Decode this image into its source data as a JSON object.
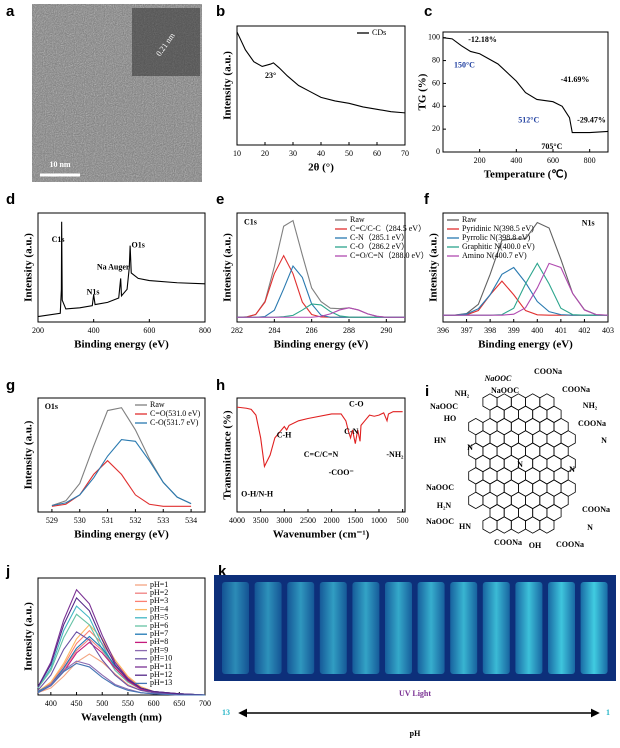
{
  "panels": {
    "a": {
      "label": "a",
      "scale_bar": "10 nm",
      "lattice": "0.21 nm"
    },
    "i": {
      "label": "i",
      "groups": [
        "NaOOC",
        "COONa",
        "NH₂",
        "NaOOC",
        "COONa",
        "NaOOC",
        "NH₂",
        "HO",
        "COONa",
        "HN",
        "N",
        "N",
        "N",
        "N",
        "NaOOC",
        "H₂N",
        "COONa",
        "NaOOC",
        "HN",
        "N",
        "COONa",
        "OH",
        "COONa"
      ]
    },
    "k": {
      "label": "k",
      "caption": "UV Light",
      "ph_high": "13",
      "ph_low": "1",
      "axis": "pH"
    }
  },
  "chart_data": [
    {
      "panel": "b",
      "type": "line",
      "xlabel": "2θ (°)",
      "ylabel": "Intensity (a.u.)",
      "xlim": [
        10,
        70
      ],
      "xticks": [
        10,
        20,
        30,
        40,
        50,
        60,
        70
      ],
      "ylim": [
        0,
        100
      ],
      "legend": "upper right",
      "series": [
        {
          "name": "CDs",
          "color": "#000000",
          "x": [
            10,
            13,
            16,
            19,
            22,
            23,
            25,
            28,
            32,
            36,
            40,
            45,
            50,
            55,
            60,
            65,
            70
          ],
          "values": [
            95,
            80,
            70,
            66,
            68,
            69,
            65,
            58,
            50,
            45,
            40,
            37,
            35,
            32,
            30,
            28,
            27
          ]
        }
      ],
      "annotations": [
        "23°"
      ]
    },
    {
      "panel": "c",
      "type": "line",
      "xlabel": "Temperature (℃)",
      "ylabel": "TG (%)",
      "xlim": [
        0,
        900
      ],
      "xticks": [
        200,
        400,
        600,
        800
      ],
      "ylim": [
        0,
        105
      ],
      "yticks": [
        0,
        20,
        40,
        60,
        80,
        100
      ],
      "series": [
        {
          "color": "#000000",
          "x": [
            0,
            50,
            100,
            150,
            200,
            300,
            400,
            450,
            512,
            600,
            650,
            690,
            705,
            750,
            800,
            900
          ],
          "values": [
            100,
            99,
            93,
            88,
            86,
            77,
            62,
            52,
            46,
            44,
            40,
            30,
            17,
            17,
            17,
            18
          ]
        }
      ],
      "annotations": [
        "-12.18%",
        "150°C",
        "-41.69%",
        "512°C",
        "-29.47%",
        "705°C"
      ]
    },
    {
      "panel": "d",
      "type": "line",
      "xlabel": "Binding energy (eV)",
      "ylabel": "Intensity (a.u.)",
      "xlim": [
        200,
        800
      ],
      "xticks": [
        200,
        400,
        600,
        800
      ],
      "ylim": [
        0,
        100
      ],
      "series": [
        {
          "color": "#000000",
          "x": [
            200,
            280,
            284,
            285,
            287,
            300,
            350,
            395,
            400,
            405,
            450,
            490,
            497,
            500,
            520,
            528,
            531,
            535,
            560,
            600,
            700,
            800
          ],
          "values": [
            5,
            8,
            30,
            92,
            20,
            12,
            13,
            15,
            25,
            16,
            18,
            22,
            40,
            24,
            30,
            50,
            70,
            45,
            40,
            38,
            36,
            35
          ]
        }
      ],
      "annotations": [
        "C1s",
        "N1s",
        "Na Auger",
        "O1s"
      ]
    },
    {
      "panel": "e",
      "type": "line",
      "title": "C1s",
      "xlabel": "Binding energy (eV)",
      "ylabel": "Intensity (a.u.)",
      "xlim": [
        282,
        291
      ],
      "xticks": [
        282,
        284,
        286,
        288,
        290
      ],
      "ylim": [
        0,
        115
      ],
      "legend": "upper right",
      "x": [
        282,
        282.5,
        283,
        283.5,
        284,
        284.5,
        285,
        285.5,
        286,
        286.5,
        287,
        287.5,
        288,
        288.5,
        289,
        289.5,
        290,
        290.5,
        291
      ],
      "series": [
        {
          "name": "Raw",
          "color": "#808080",
          "values": [
            5,
            5.3,
            7.9,
            21.8,
            58.4,
            101,
            107,
            70.6,
            35.9,
            21.5,
            14.6,
            14.1,
            15,
            12.7,
            8.6,
            6,
            5,
            5,
            5
          ]
        },
        {
          "name": "C=C/C-C（284.5 eV）",
          "color": "#e03030",
          "values": [
            5,
            5.3,
            7.9,
            21,
            51,
            70,
            51,
            21,
            7.9,
            5.3,
            5,
            5,
            5,
            5,
            5,
            5,
            5,
            5,
            5
          ]
        },
        {
          "name": "C-N（285.1 eV）",
          "color": "#2a7ab0",
          "values": [
            5,
            5,
            5,
            5.8,
            12.4,
            35,
            59,
            47,
            19,
            7.2,
            5,
            5,
            5,
            5,
            5,
            5,
            5,
            5,
            5
          ]
        },
        {
          "name": "C-O（286.2 eV）",
          "color": "#2ca58d",
          "values": [
            5,
            5,
            5,
            5,
            5,
            5.6,
            7,
            12.6,
            19,
            18,
            11,
            6.4,
            5.2,
            5,
            5,
            5,
            5,
            5,
            5
          ]
        },
        {
          "name": "C=O/C=N（288.0 eV）",
          "color": "#b04ab0",
          "values": [
            5,
            5,
            5,
            5,
            5,
            5,
            5,
            5,
            5,
            6,
            8.6,
            12.7,
            15,
            12.7,
            8.6,
            6,
            5,
            5,
            5
          ]
        }
      ]
    },
    {
      "panel": "f",
      "type": "line",
      "title": "N1s",
      "xlabel": "Binding energy (eV)",
      "ylabel": "Intensity (a.u.)",
      "xlim": [
        396,
        403
      ],
      "xticks": [
        396,
        397,
        398,
        399,
        400,
        401,
        402,
        403
      ],
      "ylim": [
        0,
        80
      ],
      "legend": "upper left",
      "x": [
        396,
        396.5,
        397,
        397.5,
        398,
        398.5,
        399,
        399.5,
        400,
        400.5,
        401,
        401.5,
        402,
        402.5,
        403
      ],
      "series": [
        {
          "name": "Raw",
          "color": "#606060",
          "values": [
            5,
            5.1,
            6.2,
            13,
            35,
            60,
            61,
            61,
            73,
            69,
            46,
            21,
            9,
            5.4,
            5
          ]
        },
        {
          "name": "Pyridinic N(398.5 eV)",
          "color": "#e03030",
          "values": [
            5,
            5,
            5.3,
            8.4,
            20,
            30,
            20,
            8.4,
            5.3,
            5,
            5,
            5,
            5,
            5,
            5
          ]
        },
        {
          "name": "Pyrrolic N(398.8 eV)",
          "color": "#2a7ab0",
          "values": [
            5,
            5,
            5.9,
            9.7,
            20,
            35,
            40,
            29,
            15,
            7.6,
            5.4,
            5,
            5,
            5,
            5
          ]
        },
        {
          "name": "Graphitic N(400.0 eV)",
          "color": "#2ca58d",
          "values": [
            5,
            5,
            5,
            5,
            5,
            5.4,
            10.1,
            28,
            43,
            28,
            10.1,
            5.4,
            5,
            5,
            5
          ]
        },
        {
          "name": "Amino N(400.7 eV)",
          "color": "#b04ab0",
          "values": [
            5,
            5,
            5,
            5,
            5,
            5,
            5.7,
            10.4,
            25,
            43,
            40,
            21,
            8.8,
            5.4,
            5
          ]
        }
      ]
    },
    {
      "panel": "g",
      "type": "line",
      "title": "O1s",
      "xlabel": "Binding energy (eV)",
      "ylabel": "Intensity (a.u.)",
      "xlim": [
        528.5,
        534.5
      ],
      "xticks": [
        529,
        530,
        531,
        532,
        533,
        534
      ],
      "ylim": [
        0,
        100
      ],
      "legend": "upper right",
      "x": [
        529,
        529.5,
        530,
        530.5,
        531,
        531.5,
        532,
        532.5,
        533,
        533.5,
        534
      ],
      "series": [
        {
          "name": "Raw",
          "color": "#808080",
          "values": [
            5.7,
            9.8,
            25,
            58,
            89,
            91.5,
            72,
            46.8,
            26,
            13,
            7.3
          ]
        },
        {
          "name": "C=O(531.0 eV)",
          "color": "#e03030",
          "values": [
            5,
            6.8,
            15,
            33,
            45,
            33,
            15,
            6.8,
            5,
            5,
            5
          ]
        },
        {
          "name": "C-O(531.7 eV)",
          "color": "#2a7ab0",
          "values": [
            5.7,
            8,
            15,
            30,
            49,
            63.5,
            62,
            45,
            26,
            13,
            7.3
          ]
        }
      ]
    },
    {
      "panel": "h",
      "type": "line",
      "xlabel": "Wavenumber (cm⁻¹)",
      "ylabel": "Transmittance (%)",
      "xlim": [
        4000,
        450
      ],
      "xticks": [
        4000,
        3500,
        3000,
        2500,
        2000,
        1500,
        1000,
        500
      ],
      "ylim": [
        0,
        100
      ],
      "series": [
        {
          "color": "#e02020",
          "x": [
            4000,
            3800,
            3700,
            3600,
            3500,
            3420,
            3300,
            3200,
            3000,
            2950,
            2900,
            2700,
            2500,
            2000,
            1800,
            1700,
            1640,
            1600,
            1560,
            1500,
            1450,
            1400,
            1380,
            1300,
            1200,
            1100,
            1000,
            900,
            830,
            800,
            700,
            600,
            500
          ],
          "values": [
            92,
            91,
            90,
            85,
            65,
            40,
            50,
            65,
            75,
            72,
            76,
            80,
            82,
            86,
            86,
            80,
            70,
            65,
            72,
            60,
            72,
            62,
            76,
            80,
            85,
            84,
            85,
            87,
            80,
            86,
            88,
            88,
            88
          ]
        }
      ],
      "annotations": [
        "C-H",
        "C=C/C=N",
        "-COO⁻",
        "C-N",
        "C-O",
        "-NH₂",
        "O-H/N-H"
      ]
    },
    {
      "panel": "j",
      "type": "line",
      "xlabel": "Wavelength (nm)",
      "ylabel": "Intensity (a.u.)",
      "xlim": [
        375,
        700
      ],
      "xticks": [
        400,
        450,
        500,
        550,
        600,
        650,
        700
      ],
      "ylim": [
        0,
        100
      ],
      "legend": "upper right",
      "x": [
        375,
        400,
        425,
        450,
        475,
        500,
        525,
        550,
        575,
        600,
        650,
        700
      ],
      "series": [
        {
          "name": "pH=1",
          "color": "#f4a582",
          "values": [
            2,
            6,
            16,
            28,
            35,
            28,
            18,
            9,
            4,
            2,
            0,
            0
          ]
        },
        {
          "name": "pH=2",
          "color": "#f08080",
          "values": [
            2,
            9,
            22,
            38,
            48,
            38,
            24,
            13,
            6,
            2,
            0,
            0
          ]
        },
        {
          "name": "pH=3",
          "color": "#fb8072",
          "values": [
            3,
            10,
            25,
            44,
            55,
            44,
            28,
            15,
            7,
            3,
            1,
            0
          ]
        },
        {
          "name": "pH=4",
          "color": "#fdb863",
          "values": [
            3,
            11,
            27,
            48,
            60,
            48,
            30,
            16,
            7,
            3,
            1,
            0
          ]
        },
        {
          "name": "pH=5",
          "color": "#41b6c4",
          "values": [
            6,
            23,
            55,
            76,
            66,
            43,
            23,
            12,
            5,
            2,
            1,
            0
          ]
        },
        {
          "name": "pH=6",
          "color": "#66c2a5",
          "values": [
            6,
            21,
            49,
            69,
            60,
            39,
            21,
            11,
            5,
            2,
            1,
            0
          ]
        },
        {
          "name": "pH=7",
          "color": "#1f78b4",
          "values": [
            3,
            9,
            23,
            40,
            50,
            40,
            25,
            14,
            6,
            3,
            1,
            0
          ]
        },
        {
          "name": "pH=8",
          "color": "#c51b7d",
          "values": [
            2,
            8,
            20,
            36,
            45,
            36,
            23,
            12,
            5,
            2,
            0,
            0
          ]
        },
        {
          "name": "pH=9",
          "color": "#8c6bb1",
          "values": [
            2,
            9,
            21,
            29,
            26,
            17,
            9,
            5,
            2,
            1,
            0,
            0
          ]
        },
        {
          "name": "pH=10",
          "color": "#6a51a3",
          "values": [
            4,
            17,
            39,
            54,
            47,
            30,
            17,
            8,
            4,
            2,
            1,
            0
          ]
        },
        {
          "name": "pH=11",
          "color": "#7b3294",
          "values": [
            7,
            28,
            64,
            90,
            78,
            51,
            28,
            14,
            6,
            3,
            1,
            0
          ]
        },
        {
          "name": "pH=12",
          "color": "#542788",
          "values": [
            7,
            26,
            60,
            83,
            72,
            47,
            26,
            13,
            6,
            3,
            1,
            0
          ]
        },
        {
          "name": "pH=13",
          "color": "#4575b4",
          "values": [
            2,
            8,
            20,
            27,
            24,
            15,
            8,
            4,
            2,
            1,
            0,
            0
          ]
        }
      ]
    }
  ]
}
